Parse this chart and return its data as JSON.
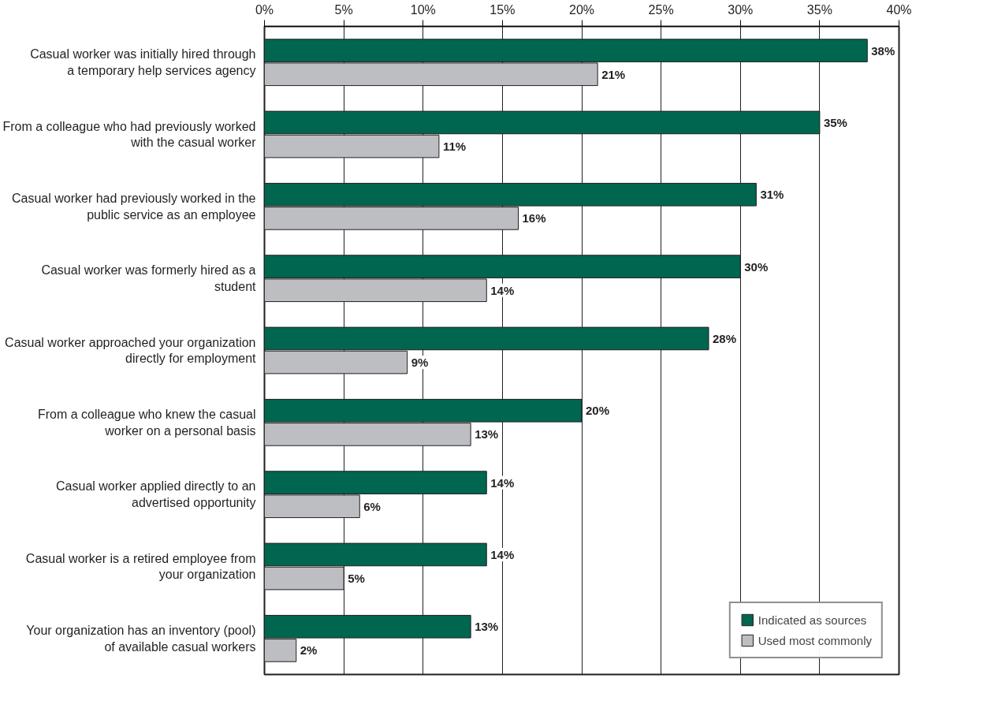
{
  "chart_data": {
    "type": "bar",
    "orientation": "horizontal",
    "categories": [
      "Casual worker was initially hired through a temporary help services agency",
      "From a colleague who had previously worked with the casual worker",
      "Casual worker had previously worked in the public service as an employee",
      "Casual worker was formerly hired as a student",
      "Casual worker approached your organization directly for employment",
      "From a colleague who knew the casual worker on a personal basis",
      "Casual worker applied directly to an advertised opportunity",
      "Casual worker is a retired employee from your organization",
      "Your organization has an inventory (pool) of available casual workers"
    ],
    "series": [
      {
        "name": "Indicated as sources",
        "color": "#00664f",
        "values": [
          38,
          35,
          31,
          30,
          28,
          20,
          14,
          14,
          13
        ],
        "value_labels": [
          "38%",
          "35%",
          "31%",
          "30%",
          "28%",
          "20%",
          "14%",
          "14%",
          "13%"
        ]
      },
      {
        "name": "Used most commonly",
        "color": "#bdbec2",
        "values": [
          21,
          11,
          16,
          14,
          9,
          13,
          6,
          5,
          2
        ],
        "value_labels": [
          "21%",
          "11%",
          "16%",
          "14%",
          "9%",
          "13%",
          "6%",
          "5%",
          "2%"
        ]
      }
    ],
    "xlim": [
      0,
      40
    ],
    "xticks": [
      {
        "value": 0,
        "label": "0%"
      },
      {
        "value": 5,
        "label": "5%"
      },
      {
        "value": 10,
        "label": "10%"
      },
      {
        "value": 15,
        "label": "15%"
      },
      {
        "value": 20,
        "label": "20%"
      },
      {
        "value": 25,
        "label": "25%"
      },
      {
        "value": 30,
        "label": "30%"
      },
      {
        "value": 35,
        "label": "35%"
      },
      {
        "value": 40,
        "label": "40%"
      }
    ],
    "grid": "x",
    "legend": "bottom right"
  }
}
